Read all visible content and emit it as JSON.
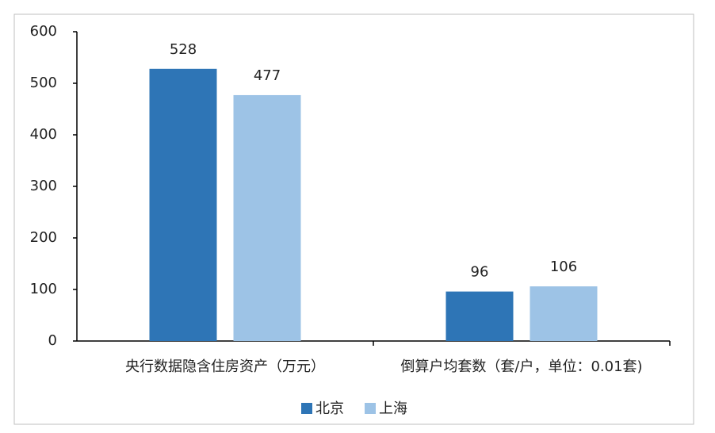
{
  "chart_data": {
    "type": "bar",
    "categories": [
      "央行数据隐含住房资产（万元）",
      "倒算户均套数（套/户，单位：0.01套)"
    ],
    "series": [
      {
        "name": "北京",
        "color": "#2e75b6",
        "values": [
          528,
          96
        ]
      },
      {
        "name": "上海",
        "color": "#9dc3e6",
        "values": [
          477,
          106
        ]
      }
    ],
    "ylim": [
      0,
      600
    ],
    "yticks": [
      0,
      100,
      200,
      300,
      400,
      500,
      600
    ],
    "grid": false,
    "legend": "bottom"
  }
}
